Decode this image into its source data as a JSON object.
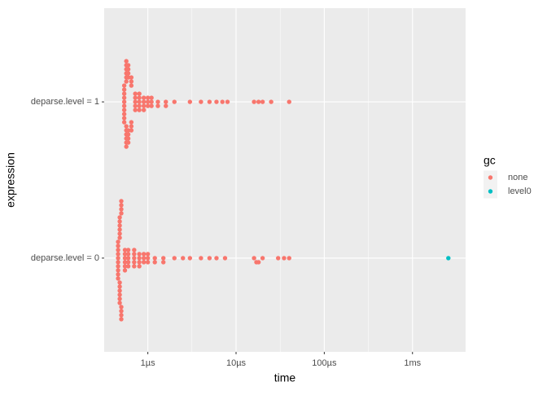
{
  "chart_data": {
    "type": "scatter",
    "x_label": "time",
    "y_label": "expression",
    "categories": [
      "deparse.level = 0",
      "deparse.level = 1"
    ],
    "xlim": [
      3.2e-07,
      0.004
    ],
    "log_x": true,
    "grid": true,
    "xticks": [
      {
        "value": 1e-06,
        "label": "1µs"
      },
      {
        "value": 1e-05,
        "label": "10µs"
      },
      {
        "value": 0.0001,
        "label": "100µs"
      },
      {
        "value": 0.001,
        "label": "1ms"
      }
    ],
    "legend_title": "gc",
    "legend_position": "right",
    "series": [
      {
        "name": "none",
        "color": "#F8766D",
        "x": [
          [
            4.6e-07,
            4.6e-07,
            4.6e-07,
            4.6e-07,
            4.6e-07,
            4.6e-07,
            4.6e-07,
            4.6e-07,
            4.6e-07,
            4.6e-07,
            4.8e-07,
            4.8e-07,
            4.8e-07,
            4.8e-07,
            4.8e-07,
            4.8e-07,
            4.8e-07,
            4.8e-07,
            4.8e-07,
            4.8e-07,
            4.8e-07,
            4.8e-07,
            5e-07,
            5e-07,
            5e-07,
            5e-07,
            5e-07,
            5e-07,
            5e-07,
            5e-07,
            5.5e-07,
            5.5e-07,
            5.5e-07,
            5.5e-07,
            5.5e-07,
            5.5e-07,
            6e-07,
            6e-07,
            6e-07,
            6e-07,
            6e-07,
            7e-07,
            7e-07,
            7e-07,
            7e-07,
            7e-07,
            8e-07,
            8e-07,
            8e-07,
            8e-07,
            9e-07,
            9e-07,
            9e-07,
            1e-06,
            1e-06,
            1e-06,
            1.2e-06,
            1.2e-06,
            1.5e-06,
            1.5e-06,
            2e-06,
            2.5e-06,
            3e-06,
            4e-06,
            5e-06,
            6e-06,
            7.5e-06,
            1.6e-05,
            1.7e-05,
            1.8e-05,
            2e-05,
            3e-05,
            3.5e-05,
            4e-05
          ],
          [
            5.4e-07,
            5.4e-07,
            5.4e-07,
            5.4e-07,
            5.4e-07,
            5.4e-07,
            5.4e-07,
            5.4e-07,
            5.4e-07,
            5.4e-07,
            5.7e-07,
            5.7e-07,
            5.7e-07,
            5.7e-07,
            5.7e-07,
            5.7e-07,
            5.7e-07,
            5.7e-07,
            5.7e-07,
            5.7e-07,
            5.7e-07,
            5.7e-07,
            6e-07,
            6e-07,
            6e-07,
            6e-07,
            6e-07,
            6e-07,
            6e-07,
            6e-07,
            6.5e-07,
            6.5e-07,
            6.5e-07,
            6.5e-07,
            6.5e-07,
            6.5e-07,
            7.2e-07,
            7.2e-07,
            7.2e-07,
            7.2e-07,
            7.2e-07,
            8e-07,
            8e-07,
            8e-07,
            8e-07,
            8e-07,
            9e-07,
            9e-07,
            9e-07,
            9e-07,
            1e-06,
            1e-06,
            1e-06,
            1.1e-06,
            1.1e-06,
            1.1e-06,
            1.3e-06,
            1.3e-06,
            1.6e-06,
            1.6e-06,
            2e-06,
            3e-06,
            4e-06,
            5e-06,
            6e-06,
            7e-06,
            8e-06,
            1.6e-05,
            1.8e-05,
            2e-05,
            2.5e-05,
            4e-05
          ]
        ]
      },
      {
        "name": "level0",
        "color": "#00BFC4",
        "x": [
          [
            0.00255
          ],
          []
        ]
      }
    ]
  }
}
